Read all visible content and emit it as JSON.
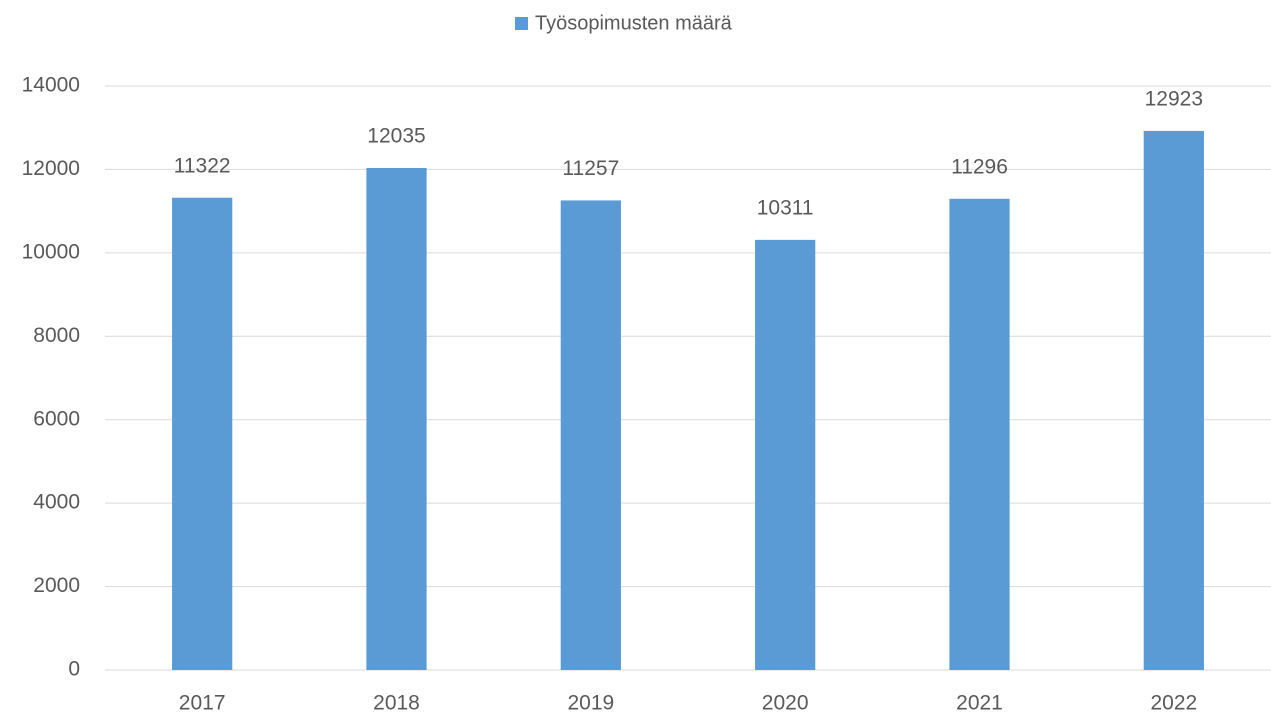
{
  "chart_data": {
    "type": "bar",
    "categories": [
      "2017",
      "2018",
      "2019",
      "2020",
      "2021",
      "2022"
    ],
    "series": [
      {
        "name": "Työsopimusten määrä",
        "color": "#5b9bd5",
        "values": [
          11322,
          12035,
          11257,
          10311,
          11296,
          12923
        ]
      }
    ],
    "ylim": [
      0,
      14000
    ],
    "yticks": [
      0,
      2000,
      4000,
      6000,
      8000,
      10000,
      12000,
      14000
    ],
    "grid": true,
    "legend": "top",
    "data_labels": true
  }
}
